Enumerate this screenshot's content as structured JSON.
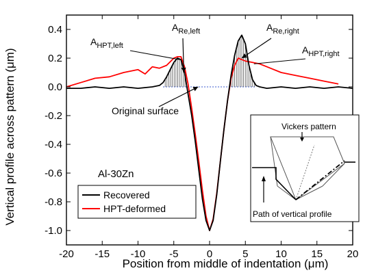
{
  "chart_data": {
    "type": "line",
    "xlabel": "Position from middle of indentation (μm)",
    "ylabel": "Vertical profile across pattern (μm)",
    "xlim": [
      -20,
      20
    ],
    "ylim": [
      -1.1,
      0.5
    ],
    "xticks": [
      -20,
      -15,
      -10,
      -5,
      0,
      5,
      10,
      15,
      20
    ],
    "yticks": [
      -1.0,
      -0.8,
      -0.6,
      -0.4,
      -0.2,
      0.0,
      0.2,
      0.4
    ],
    "ytick_labels": [
      "-1.0",
      "-0.8",
      "-0.6",
      "-0.4",
      "-0.2",
      "0.0",
      "0.2",
      "0.4"
    ],
    "legend": {
      "position": "bottom-left"
    },
    "series": [
      {
        "name": "Recovered",
        "color": "#000000",
        "x": [
          -20,
          -18,
          -16,
          -14,
          -12,
          -10,
          -8,
          -7,
          -6.5,
          -6,
          -5.5,
          -5,
          -4.5,
          -4,
          -3.5,
          -3,
          -2.5,
          -2,
          -1.5,
          -1,
          -0.5,
          0,
          0.5,
          1,
          1.5,
          2,
          2.5,
          3,
          3.5,
          4,
          4.5,
          5,
          5.5,
          6,
          6.5,
          7,
          8,
          10,
          12,
          14,
          16,
          18,
          20
        ],
        "y": [
          -0.01,
          -0.01,
          0.0,
          -0.01,
          0.0,
          -0.01,
          0.0,
          0.01,
          0.03,
          0.07,
          0.12,
          0.17,
          0.2,
          0.19,
          0.1,
          -0.05,
          -0.2,
          -0.38,
          -0.58,
          -0.78,
          -0.93,
          -1.0,
          -0.93,
          -0.75,
          -0.52,
          -0.3,
          -0.1,
          0.08,
          0.22,
          0.32,
          0.36,
          0.3,
          0.15,
          0.05,
          0.01,
          0.0,
          -0.01,
          0.0,
          -0.01,
          0.0,
          -0.01,
          0.0,
          -0.01
        ]
      },
      {
        "name": "HPT-deformed",
        "color": "#ff0000",
        "x": [
          -20,
          -18,
          -16,
          -14,
          -12,
          -10,
          -9,
          -8,
          -7,
          -6,
          -5,
          -4.5,
          -4,
          -3.5,
          -3,
          -2.5,
          -2,
          -1.5,
          -1,
          -0.5,
          0,
          0.5,
          1,
          1.5,
          2,
          2.5,
          3,
          3.5,
          4,
          4.5,
          5,
          6,
          7,
          8,
          10,
          12,
          14,
          16,
          18
        ],
        "y": [
          0.0,
          0.03,
          0.06,
          0.07,
          0.1,
          0.12,
          0.09,
          0.14,
          0.13,
          0.15,
          0.2,
          0.21,
          0.21,
          0.14,
          0.02,
          -0.15,
          -0.33,
          -0.52,
          -0.72,
          -0.9,
          -1.0,
          -0.92,
          -0.74,
          -0.52,
          -0.3,
          -0.1,
          0.06,
          0.15,
          0.2,
          0.19,
          0.18,
          0.17,
          0.16,
          0.14,
          0.1,
          0.08,
          0.06,
          0.04,
          0.02
        ]
      }
    ],
    "annotations": [
      {
        "main": "A",
        "sub": "HPT,left"
      },
      {
        "main": "A",
        "sub": "Re,left"
      },
      {
        "main": "A",
        "sub": "Re,right"
      },
      {
        "main": "A",
        "sub": "HPT,right"
      },
      {
        "text": "Original surface"
      },
      {
        "text": "Al-30Zn"
      }
    ],
    "inset": {
      "title": "Vickers pattern",
      "caption": "Path of vertical profile"
    }
  }
}
